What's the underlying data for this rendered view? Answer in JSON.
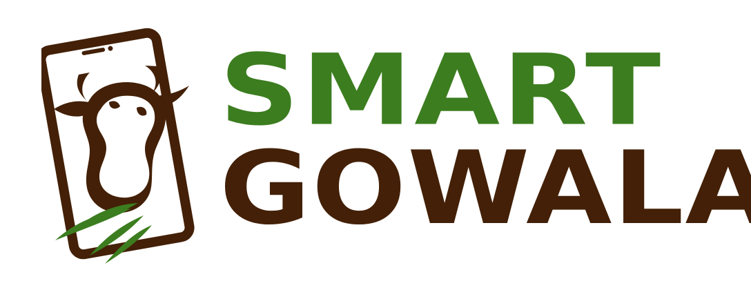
{
  "brand": {
    "line1": "SMART",
    "line2": "GOWALA",
    "colors": {
      "green": "#3c7d1f",
      "brown": "#432007",
      "background": "#ffffff"
    }
  },
  "icons": {
    "mark": "phone-with-cow-head-icon"
  }
}
